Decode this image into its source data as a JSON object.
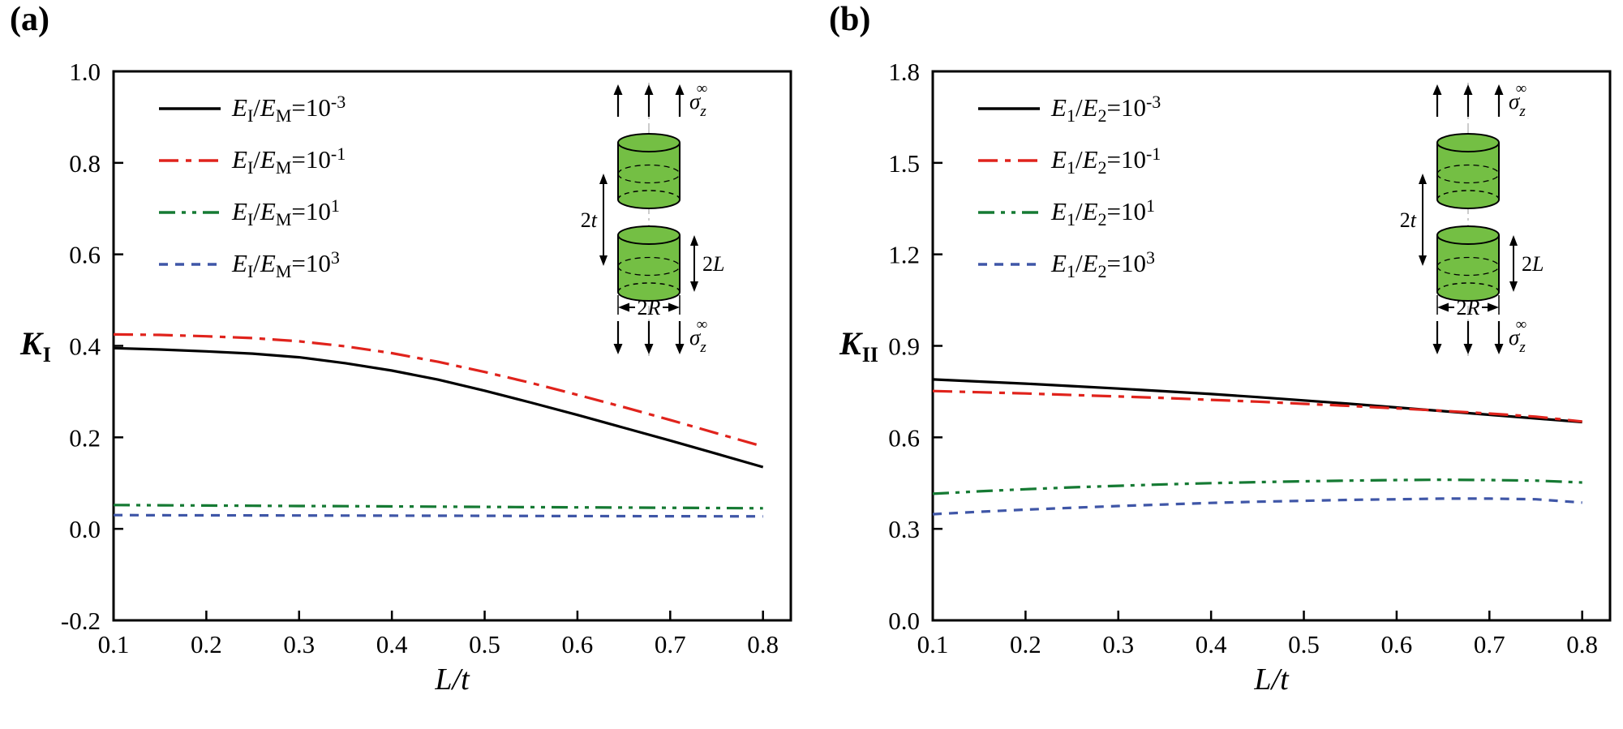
{
  "figure": {
    "background": "#ffffff"
  },
  "colors": {
    "black": "#000000",
    "red": "#e0231c",
    "green": "#157a33",
    "blue": "#3f56a7",
    "cylinder_green": "#74bf44"
  },
  "chart_data": [
    {
      "type": "line",
      "panel_label": "(a)",
      "xlabel": "L/t",
      "ylabel": {
        "base": "K",
        "sub": "I"
      },
      "xlim": [
        0.1,
        0.83
      ],
      "ylim": [
        -0.2,
        1.0
      ],
      "xticks": [
        0.1,
        0.2,
        0.3,
        0.4,
        0.5,
        0.6,
        0.7,
        0.8
      ],
      "xtick_labels": [
        "0.1",
        "0.2",
        "0.3",
        "0.4",
        "0.5",
        "0.6",
        "0.7",
        "0.8"
      ],
      "yticks": [
        -0.2,
        0.0,
        0.2,
        0.4,
        0.6,
        0.8,
        1.0
      ],
      "ytick_labels": [
        "-0.2",
        "0.0",
        "0.2",
        "0.4",
        "0.6",
        "0.8",
        "1.0"
      ],
      "legend_position": "top-left",
      "grid": false,
      "x": [
        0.1,
        0.15,
        0.2,
        0.25,
        0.3,
        0.35,
        0.4,
        0.45,
        0.5,
        0.55,
        0.6,
        0.65,
        0.7,
        0.75,
        0.8
      ],
      "series": [
        {
          "name": "EI/EM=10^-3",
          "color": "#000000",
          "dash": "solid",
          "label_parts": [
            [
              "i",
              "E"
            ],
            [
              "sub",
              "I"
            ],
            [
              "n",
              "/"
            ],
            [
              "i",
              "E"
            ],
            [
              "sub",
              "M"
            ],
            [
              "n",
              "=10"
            ],
            [
              "sup",
              "-3"
            ]
          ],
          "values": [
            0.395,
            0.392,
            0.388,
            0.383,
            0.375,
            0.362,
            0.346,
            0.326,
            0.302,
            0.276,
            0.249,
            0.221,
            0.193,
            0.164,
            0.135
          ]
        },
        {
          "name": "EI/EM=10^-1",
          "color": "#e0231c",
          "dash": "dashdot",
          "label_parts": [
            [
              "i",
              "E"
            ],
            [
              "sub",
              "I"
            ],
            [
              "n",
              "/"
            ],
            [
              "i",
              "E"
            ],
            [
              "sub",
              "M"
            ],
            [
              "n",
              "=10"
            ],
            [
              "sup",
              "-1"
            ]
          ],
          "values": [
            0.425,
            0.424,
            0.421,
            0.417,
            0.41,
            0.399,
            0.384,
            0.365,
            0.343,
            0.319,
            0.293,
            0.266,
            0.238,
            0.209,
            0.18
          ]
        },
        {
          "name": "EI/EM=10^1",
          "color": "#157a33",
          "dash": "dashdotdot",
          "label_parts": [
            [
              "i",
              "E"
            ],
            [
              "sub",
              "I"
            ],
            [
              "n",
              "/"
            ],
            [
              "i",
              "E"
            ],
            [
              "sub",
              "M"
            ],
            [
              "n",
              "=10"
            ],
            [
              "sup",
              "1"
            ]
          ],
          "values": [
            0.052,
            0.0515,
            0.051,
            0.0505,
            0.05,
            0.0495,
            0.049,
            0.0485,
            0.048,
            0.0475,
            0.047,
            0.0465,
            0.046,
            0.0455,
            0.045
          ]
        },
        {
          "name": "EI/EM=10^3",
          "color": "#3f56a7",
          "dash": "dash",
          "label_parts": [
            [
              "i",
              "E"
            ],
            [
              "sub",
              "I"
            ],
            [
              "n",
              "/"
            ],
            [
              "i",
              "E"
            ],
            [
              "sub",
              "M"
            ],
            [
              "n",
              "=10"
            ],
            [
              "sup",
              "3"
            ]
          ],
          "values": [
            0.03,
            0.0298,
            0.0296,
            0.0294,
            0.0292,
            0.029,
            0.0288,
            0.0286,
            0.0284,
            0.0282,
            0.028,
            0.0278,
            0.0276,
            0.0274,
            0.0272
          ]
        }
      ],
      "inset": {
        "dim_thickness": "2t",
        "dim_length": "2L",
        "dim_radius": "2R",
        "stress_symbol": "σ",
        "stress_sub": "z",
        "stress_sup": "∞",
        "cylinder_color": "#74bf44"
      }
    },
    {
      "type": "line",
      "panel_label": "(b)",
      "xlabel": "L/t",
      "ylabel": {
        "base": "K",
        "sub": "II"
      },
      "xlim": [
        0.1,
        0.83
      ],
      "ylim": [
        0.0,
        1.8
      ],
      "xticks": [
        0.1,
        0.2,
        0.3,
        0.4,
        0.5,
        0.6,
        0.7,
        0.8
      ],
      "xtick_labels": [
        "0.1",
        "0.2",
        "0.3",
        "0.4",
        "0.5",
        "0.6",
        "0.7",
        "0.8"
      ],
      "yticks": [
        0.0,
        0.3,
        0.6,
        0.9,
        1.2,
        1.5,
        1.8
      ],
      "ytick_labels": [
        "0.0",
        "0.3",
        "0.6",
        "0.9",
        "1.2",
        "1.5",
        "1.8"
      ],
      "legend_position": "top-left",
      "grid": false,
      "x": [
        0.1,
        0.15,
        0.2,
        0.25,
        0.3,
        0.35,
        0.4,
        0.45,
        0.5,
        0.55,
        0.6,
        0.65,
        0.7,
        0.75,
        0.8
      ],
      "series": [
        {
          "name": "E1/E2=10^-3",
          "color": "#000000",
          "dash": "solid",
          "label_parts": [
            [
              "i",
              "E"
            ],
            [
              "sub",
              "1"
            ],
            [
              "n",
              "/"
            ],
            [
              "i",
              "E"
            ],
            [
              "sub",
              "2"
            ],
            [
              "n",
              "=10"
            ],
            [
              "sup",
              "-3"
            ]
          ],
          "values": [
            0.79,
            0.783,
            0.776,
            0.768,
            0.76,
            0.751,
            0.742,
            0.732,
            0.721,
            0.71,
            0.698,
            0.686,
            0.674,
            0.662,
            0.65
          ]
        },
        {
          "name": "E1/E2=10^-1",
          "color": "#e0231c",
          "dash": "dashdot",
          "label_parts": [
            [
              "i",
              "E"
            ],
            [
              "sub",
              "1"
            ],
            [
              "n",
              "/"
            ],
            [
              "i",
              "E"
            ],
            [
              "sub",
              "2"
            ],
            [
              "n",
              "=10"
            ],
            [
              "sup",
              "-1"
            ]
          ],
          "values": [
            0.752,
            0.748,
            0.744,
            0.739,
            0.734,
            0.729,
            0.723,
            0.717,
            0.71,
            0.703,
            0.695,
            0.687,
            0.678,
            0.668,
            0.652
          ]
        },
        {
          "name": "E1/E2=10^1",
          "color": "#157a33",
          "dash": "dashdotdot",
          "label_parts": [
            [
              "i",
              "E"
            ],
            [
              "sub",
              "1"
            ],
            [
              "n",
              "/"
            ],
            [
              "i",
              "E"
            ],
            [
              "sub",
              "2"
            ],
            [
              "n",
              "=10"
            ],
            [
              "sup",
              "1"
            ]
          ],
          "values": [
            0.415,
            0.423,
            0.43,
            0.436,
            0.441,
            0.446,
            0.45,
            0.453,
            0.456,
            0.458,
            0.46,
            0.461,
            0.46,
            0.458,
            0.452
          ]
        },
        {
          "name": "E1/E2=10^3",
          "color": "#3f56a7",
          "dash": "dash",
          "label_parts": [
            [
              "i",
              "E"
            ],
            [
              "sub",
              "1"
            ],
            [
              "n",
              "/"
            ],
            [
              "i",
              "E"
            ],
            [
              "sub",
              "2"
            ],
            [
              "n",
              "=10"
            ],
            [
              "sup",
              "3"
            ]
          ],
          "values": [
            0.348,
            0.356,
            0.363,
            0.369,
            0.375,
            0.38,
            0.385,
            0.389,
            0.392,
            0.395,
            0.397,
            0.399,
            0.399,
            0.397,
            0.386
          ]
        }
      ],
      "inset": {
        "dim_thickness": "2t",
        "dim_length": "2L",
        "dim_radius": "2R",
        "stress_symbol": "σ",
        "stress_sub": "z",
        "stress_sup": "∞",
        "cylinder_color": "#74bf44"
      }
    }
  ]
}
